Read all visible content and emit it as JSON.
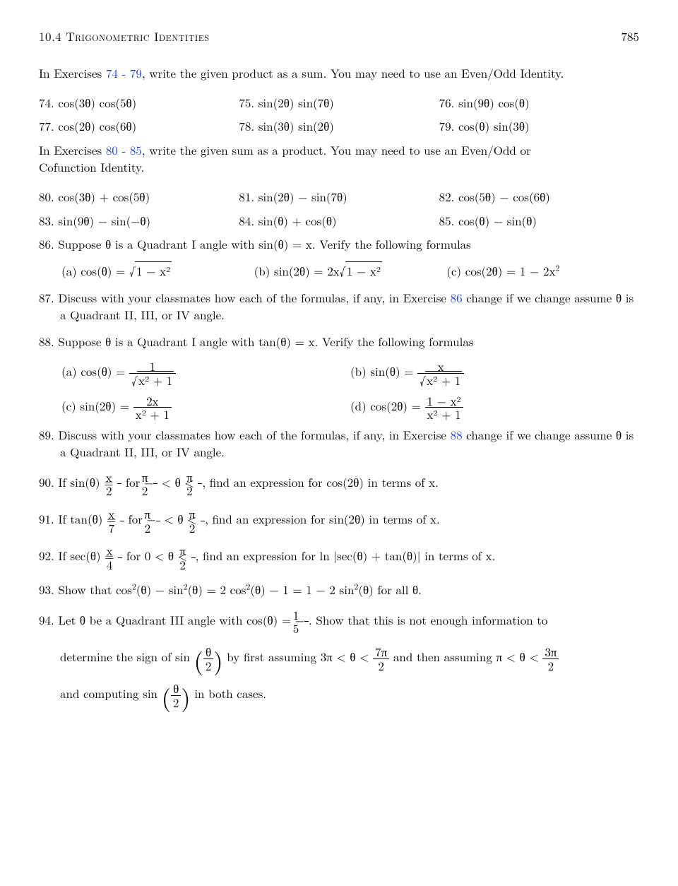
{
  "header": {
    "section": "10.4 Trigonometric Identities",
    "page": "785"
  },
  "intro74": {
    "range": "74 - 79",
    "text": ", write the given product as a sum. You may need to use an Even/Odd Identity."
  },
  "ex74": {
    "n": "74.",
    "expr": "cos(3θ) cos(5θ)"
  },
  "ex75": {
    "n": "75.",
    "expr": "sin(2θ) sin(7θ)"
  },
  "ex76": {
    "n": "76.",
    "expr": "sin(9θ) cos(θ)"
  },
  "ex77": {
    "n": "77.",
    "expr": "cos(2θ) cos(6θ)"
  },
  "ex78": {
    "n": "78.",
    "expr": "sin(3θ) sin(2θ)"
  },
  "ex79": {
    "n": "79.",
    "expr": "cos(θ) sin(3θ)"
  },
  "intro80": {
    "range": "80 - 85",
    "text1": ", write the given sum as a product.  You may need to use an Even/Odd or",
    "text2": "Cofunction Identity."
  },
  "ex80": {
    "n": "80.",
    "expr": "cos(3θ) + cos(5θ)"
  },
  "ex81": {
    "n": "81.",
    "expr": "sin(2θ) − sin(7θ)"
  },
  "ex82": {
    "n": "82.",
    "expr": "cos(5θ) − cos(6θ)"
  },
  "ex83": {
    "n": "83.",
    "expr": "sin(9θ) − sin(−θ)"
  },
  "ex84": {
    "n": "84.",
    "expr": "sin(θ) + cos(θ)"
  },
  "ex85": {
    "n": "85.",
    "expr": "cos(θ) − sin(θ)"
  },
  "ex86": {
    "n": "86.",
    "text": "Suppose θ is a Quadrant I angle with sin(θ) = x. Verify the following formulas",
    "a": "(a)  cos(θ) = ",
    "b": "(b)  sin(2θ) = 2x",
    "c": "(c)  cos(2θ) = 1 − 2x"
  },
  "ex87": {
    "n": "87.",
    "text1": "Discuss with your classmates how each of the formulas, if any, in Exercise ",
    "ref": "86",
    "text2": " change if we change assume θ is a Quadrant II, III, or IV angle."
  },
  "ex88": {
    "n": "88.",
    "text": "Suppose θ is a Quadrant I angle with tan(θ) = x. Verify the following formulas",
    "a": "(a)  cos(θ) = ",
    "b": "(b)  sin(θ) = ",
    "c": "(c)  sin(2θ) = ",
    "d": "(d)  cos(2θ) = "
  },
  "ex89": {
    "n": "89.",
    "text1": "Discuss with your classmates how each of the formulas, if any, in Exercise ",
    "ref": "88",
    "text2": " change if we change assume θ is a Quadrant II, III, or IV angle."
  },
  "ex90": {
    "n": "90.",
    "t1": "If sin(θ) = ",
    "t2": " for −",
    "t3": " < θ < ",
    "t4": ", find an expression for cos(2θ) in terms of x."
  },
  "ex91": {
    "n": "91.",
    "t1": "If tan(θ) = ",
    "t2": " for −",
    "t3": " < θ < ",
    "t4": ", find an expression for sin(2θ) in terms of x."
  },
  "ex92": {
    "n": "92.",
    "t1": "If sec(θ) = ",
    "t2": " for 0 < θ < ",
    "t3": ", find an expression for ln |sec(θ) + tan(θ)| in terms of x."
  },
  "ex93": {
    "n": "93.",
    "text": "Show that cos",
    "text2": "(θ) − sin",
    "text3": "(θ) = 2 cos",
    "text4": "(θ) − 1 = 1 − 2 sin",
    "text5": "(θ) for all θ."
  },
  "ex94": {
    "n": "94.",
    "t1": "Let θ be a Quadrant III angle with cos(θ) = −",
    "t2": ". Show that this is not enough information to",
    "t3": "determine the sign of sin",
    "t4": " by first assuming 3π < θ < ",
    "t5": " and then assuming π < θ < ",
    "t6": "and computing sin",
    "t7": " in both cases."
  },
  "frac": {
    "x2": {
      "n": "x",
      "d": "2"
    },
    "x7": {
      "n": "x",
      "d": "7"
    },
    "x4": {
      "n": "x",
      "d": "4"
    },
    "pi2": {
      "n": "π",
      "d": "2"
    },
    "15": {
      "n": "1",
      "d": "5"
    },
    "th2": {
      "n": "θ",
      "d": "2"
    },
    "7pi2": {
      "n": "7π",
      "d": "2"
    },
    "3pi2": {
      "n": "3π",
      "d": "2"
    },
    "f88c": {
      "n": "2x",
      "d": "x² + 1"
    },
    "f88d": {
      "n": "1 − x²",
      "d": "x² + 1"
    }
  },
  "misc": {
    "inEx": "In Exercises ",
    "two": "2",
    "one": "1",
    "x": "x",
    "xsq1": "x² + 1",
    "oneMinusXsq": "1 − x²"
  }
}
